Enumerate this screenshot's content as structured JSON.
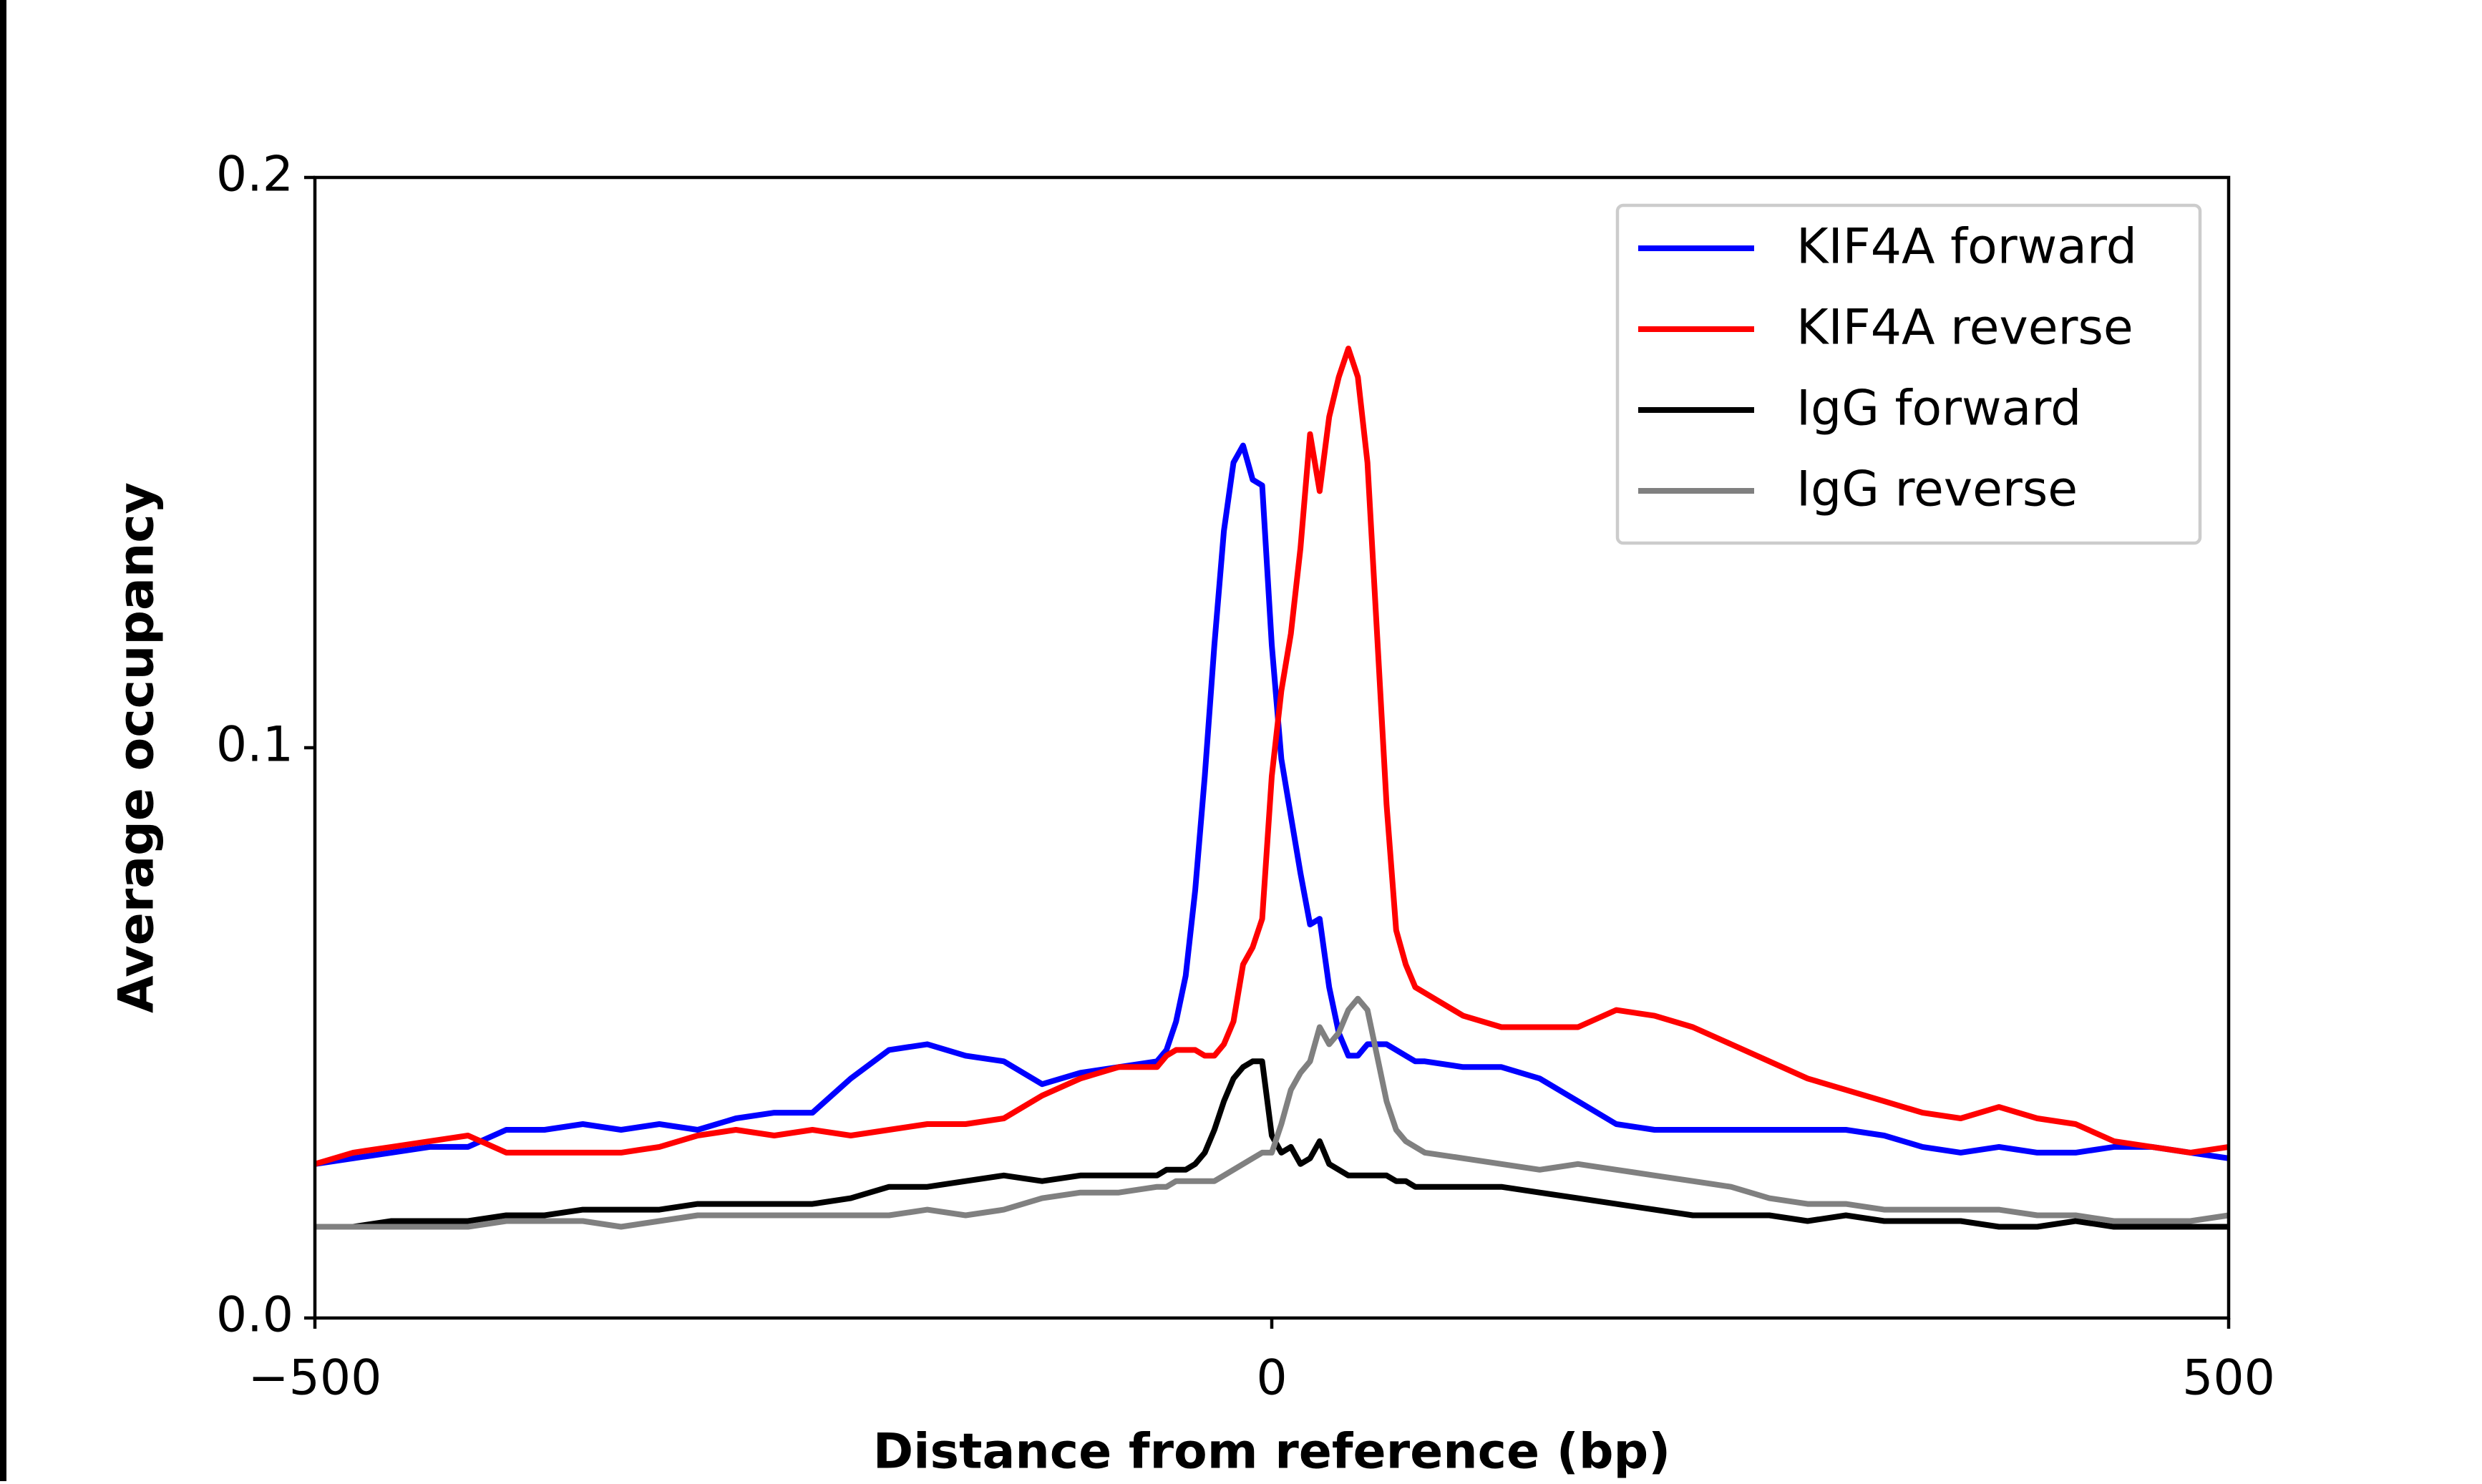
{
  "chart_data": {
    "type": "line",
    "xlabel": "Distance from reference (bp)",
    "ylabel": "Average occupancy",
    "xlim": [
      -500,
      500
    ],
    "ylim": [
      0,
      0.2
    ],
    "xticks": [
      {
        "value": -500,
        "label": "−500"
      },
      0,
      500
    ],
    "yticks": [
      {
        "value": 0,
        "label": "0.0"
      },
      0.1,
      0.2
    ],
    "grid": false,
    "legend": "upper right",
    "x": [
      -500,
      -480,
      -460,
      -440,
      -420,
      -400,
      -380,
      -360,
      -340,
      -320,
      -300,
      -280,
      -260,
      -240,
      -220,
      -200,
      -180,
      -160,
      -140,
      -120,
      -100,
      -80,
      -60,
      -55,
      -50,
      -45,
      -40,
      -35,
      -30,
      -25,
      -20,
      -15,
      -10,
      -5,
      0,
      5,
      10,
      15,
      20,
      25,
      30,
      35,
      40,
      45,
      50,
      55,
      60,
      65,
      70,
      75,
      80,
      100,
      120,
      140,
      160,
      180,
      200,
      220,
      240,
      260,
      280,
      300,
      320,
      340,
      360,
      380,
      400,
      420,
      440,
      460,
      480,
      500
    ],
    "series": [
      {
        "name": "KIF4A forward",
        "color": "#0000ff",
        "values": [
          0.027,
          0.028,
          0.029,
          0.03,
          0.03,
          0.033,
          0.033,
          0.034,
          0.033,
          0.034,
          0.033,
          0.035,
          0.036,
          0.036,
          0.042,
          0.047,
          0.048,
          0.046,
          0.045,
          0.041,
          0.043,
          0.044,
          0.045,
          0.047,
          0.052,
          0.06,
          0.075,
          0.095,
          0.118,
          0.138,
          0.15,
          0.153,
          0.147,
          0.146,
          0.118,
          0.098,
          0.088,
          0.078,
          0.069,
          0.07,
          0.058,
          0.05,
          0.046,
          0.046,
          0.048,
          0.048,
          0.048,
          0.047,
          0.046,
          0.045,
          0.045,
          0.044,
          0.044,
          0.042,
          0.038,
          0.034,
          0.033,
          0.033,
          0.033,
          0.033,
          0.033,
          0.033,
          0.032,
          0.03,
          0.029,
          0.03,
          0.029,
          0.029,
          0.03,
          0.03,
          0.029,
          0.028
        ]
      },
      {
        "name": "KIF4A reverse",
        "color": "#ff0000",
        "values": [
          0.027,
          0.029,
          0.03,
          0.031,
          0.032,
          0.029,
          0.029,
          0.029,
          0.029,
          0.03,
          0.032,
          0.033,
          0.032,
          0.033,
          0.032,
          0.033,
          0.034,
          0.034,
          0.035,
          0.039,
          0.042,
          0.044,
          0.044,
          0.046,
          0.047,
          0.047,
          0.047,
          0.046,
          0.046,
          0.048,
          0.052,
          0.062,
          0.065,
          0.07,
          0.095,
          0.11,
          0.12,
          0.135,
          0.155,
          0.145,
          0.158,
          0.165,
          0.17,
          0.165,
          0.15,
          0.12,
          0.09,
          0.068,
          0.062,
          0.058,
          0.057,
          0.053,
          0.051,
          0.051,
          0.051,
          0.054,
          0.053,
          0.051,
          0.048,
          0.045,
          0.042,
          0.04,
          0.038,
          0.036,
          0.035,
          0.037,
          0.035,
          0.034,
          0.031,
          0.03,
          0.029,
          0.03
        ]
      },
      {
        "name": "IgG forward",
        "color": "#000000",
        "values": [
          0.016,
          0.016,
          0.017,
          0.017,
          0.017,
          0.018,
          0.018,
          0.019,
          0.019,
          0.019,
          0.02,
          0.02,
          0.02,
          0.02,
          0.021,
          0.023,
          0.023,
          0.024,
          0.025,
          0.024,
          0.025,
          0.025,
          0.025,
          0.026,
          0.026,
          0.026,
          0.027,
          0.029,
          0.033,
          0.038,
          0.042,
          0.044,
          0.045,
          0.045,
          0.032,
          0.029,
          0.03,
          0.027,
          0.028,
          0.031,
          0.027,
          0.026,
          0.025,
          0.025,
          0.025,
          0.025,
          0.025,
          0.024,
          0.024,
          0.023,
          0.023,
          0.023,
          0.023,
          0.022,
          0.021,
          0.02,
          0.019,
          0.018,
          0.018,
          0.018,
          0.017,
          0.018,
          0.017,
          0.017,
          0.017,
          0.016,
          0.016,
          0.017,
          0.016,
          0.016,
          0.016,
          0.016
        ]
      },
      {
        "name": "IgG reverse",
        "color": "#808080",
        "values": [
          0.016,
          0.016,
          0.016,
          0.016,
          0.016,
          0.017,
          0.017,
          0.017,
          0.016,
          0.017,
          0.018,
          0.018,
          0.018,
          0.018,
          0.018,
          0.018,
          0.019,
          0.018,
          0.019,
          0.021,
          0.022,
          0.022,
          0.023,
          0.023,
          0.024,
          0.024,
          0.024,
          0.024,
          0.024,
          0.025,
          0.026,
          0.027,
          0.028,
          0.029,
          0.029,
          0.034,
          0.04,
          0.043,
          0.045,
          0.051,
          0.048,
          0.05,
          0.054,
          0.056,
          0.054,
          0.046,
          0.038,
          0.033,
          0.031,
          0.03,
          0.029,
          0.028,
          0.027,
          0.026,
          0.027,
          0.026,
          0.025,
          0.024,
          0.023,
          0.021,
          0.02,
          0.02,
          0.019,
          0.019,
          0.019,
          0.019,
          0.018,
          0.018,
          0.017,
          0.017,
          0.017,
          0.018
        ]
      }
    ]
  }
}
